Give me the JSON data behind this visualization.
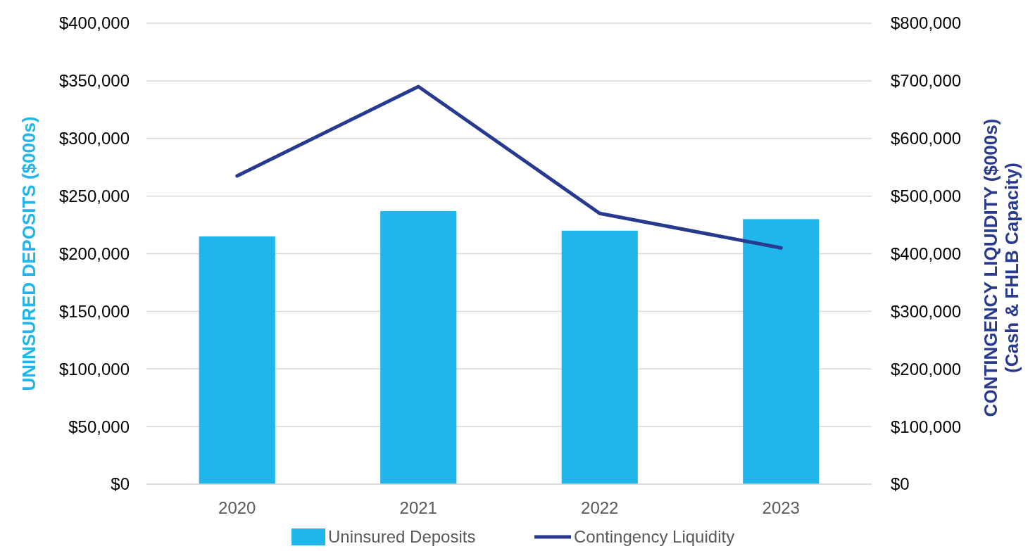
{
  "chart_data": {
    "type": "bar",
    "categories": [
      "2020",
      "2021",
      "2022",
      "2023"
    ],
    "ylabel": "UNINSURED DEPOSITS ($000s)",
    "y2label": "CONTINGENCY LIQUIDITY ($000s)\n(Cash & FHLB Capacity)",
    "series": [
      {
        "name": "Uninsured Deposits",
        "color": "#20b6ec",
        "values": [
          215000,
          237000,
          220000,
          230000
        ]
      },
      {
        "name": "Contingency Liquidity",
        "type": "line",
        "axis": "y2",
        "color": "#283a8e",
        "values": [
          535000,
          690000,
          470000,
          410000
        ]
      }
    ],
    "ylim": [
      0,
      400000
    ],
    "yticks": [
      {
        "value": 0,
        "label": "$0"
      },
      {
        "value": 50000,
        "label": "$50,000"
      },
      {
        "value": 100000,
        "label": "$100,000"
      },
      {
        "value": 150000,
        "label": "$150,000"
      },
      {
        "value": 200000,
        "label": "$200,000"
      },
      {
        "value": 250000,
        "label": "$250,000"
      },
      {
        "value": 300000,
        "label": "$300,000"
      },
      {
        "value": 350000,
        "label": "$350,000"
      },
      {
        "value": 400000,
        "label": "$400,000"
      }
    ],
    "y2lim": [
      0,
      800000
    ],
    "y2ticks": [
      {
        "value": 0,
        "label": "$0"
      },
      {
        "value": 100000,
        "label": "$100,000"
      },
      {
        "value": 200000,
        "label": "$200,000"
      },
      {
        "value": 300000,
        "label": "$300,000"
      },
      {
        "value": 400000,
        "label": "$400,000"
      },
      {
        "value": 500000,
        "label": "$500,000"
      },
      {
        "value": 600000,
        "label": "$600,000"
      },
      {
        "value": 700000,
        "label": "$700,000"
      },
      {
        "value": 800000,
        "label": "$800,000"
      }
    ],
    "grid": "y",
    "legend": "bottom",
    "marker": "none",
    "line_style": "solid"
  }
}
